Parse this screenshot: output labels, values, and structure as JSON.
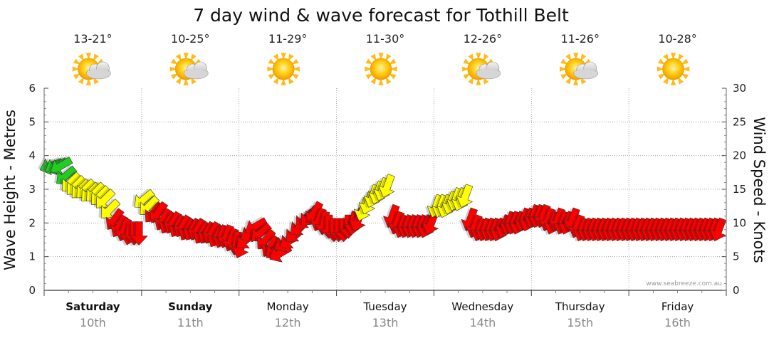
{
  "chart_data": {
    "type": "scatter",
    "title": "7 day wind & wave forecast for Tothill Belt",
    "ylabel_left": "Wave Height - Metres",
    "ylabel_right": "Wind Speed - Knots",
    "ylim_left": [
      0,
      6
    ],
    "ylim_right": [
      0,
      30
    ],
    "left_ticks": [
      "0",
      "1",
      "2",
      "3",
      "4",
      "5",
      "6"
    ],
    "right_ticks": [
      "0",
      "5",
      "10",
      "15",
      "20",
      "25",
      "30"
    ],
    "grid": true,
    "credit": "www.seabreeze.com.au",
    "days": [
      {
        "name": "Saturday",
        "date": "10th",
        "bold": true,
        "temp": "13-21°",
        "icon": "sun-cloud-icon"
      },
      {
        "name": "Sunday",
        "date": "11th",
        "bold": true,
        "temp": "10-25°",
        "icon": "sun-cloud-icon"
      },
      {
        "name": "Monday",
        "date": "12th",
        "bold": false,
        "temp": "11-29°",
        "icon": "sun-icon"
      },
      {
        "name": "Tuesday",
        "date": "13th",
        "bold": false,
        "temp": "11-30°",
        "icon": "sun-icon"
      },
      {
        "name": "Wednesday",
        "date": "14th",
        "bold": false,
        "temp": "12-26°",
        "icon": "sun-cloud-icon"
      },
      {
        "name": "Thursday",
        "date": "15th",
        "bold": false,
        "temp": "11-26°",
        "icon": "sun-cloud-icon"
      },
      {
        "name": "Friday",
        "date": "16th",
        "bold": false,
        "temp": "10-28°",
        "icon": "sun-icon"
      }
    ],
    "color_scale": {
      "green": "#22cc22",
      "yellow": "#ffff00",
      "red": "#ff0000"
    },
    "wind_series": {
      "name": "Wind Speed",
      "unit": "knots",
      "t": [
        0,
        0.15,
        0.3,
        0.45,
        0.6,
        0.75,
        0.9,
        1.05,
        1.2,
        1.35,
        1.5,
        1.65,
        1.8,
        1.95,
        2.1,
        2.25,
        2.4,
        2.55,
        2.7,
        2.85,
        3.0,
        3.15,
        3.3,
        3.45,
        3.6,
        3.75,
        3.9,
        4.05,
        4.2,
        4.35,
        4.5,
        4.65,
        4.8,
        4.95,
        5.1,
        5.25,
        5.4,
        5.55,
        5.7,
        5.85,
        6.0,
        6.15,
        6.3,
        6.45,
        6.6,
        6.75,
        6.9,
        7.05,
        7.2,
        7.35,
        7.5,
        7.65,
        7.8,
        7.95,
        8.1,
        8.25,
        8.4,
        8.55,
        8.7,
        8.85,
        9.0,
        9.15,
        9.3,
        9.45,
        9.6,
        9.75,
        9.9,
        10.05,
        10.2,
        10.35,
        10.5,
        10.65,
        10.8,
        10.95,
        11.1,
        11.25,
        11.4,
        11.55,
        11.7,
        11.85,
        12.0,
        12.15,
        12.3,
        12.45,
        12.6,
        12.75,
        12.9,
        13.05,
        13.2,
        13.35,
        13.5,
        13.65,
        13.8,
        13.95,
        14.1,
        14.25,
        14.4,
        14.55,
        14.7,
        14.85,
        15.0,
        15.15,
        15.3,
        15.45,
        15.6,
        15.75,
        15.9,
        16.05,
        16.2,
        16.35,
        16.5,
        16.65,
        16.8,
        16.95,
        17.1,
        17.25,
        17.4,
        17.55,
        17.7,
        17.85,
        18.0,
        18.15,
        18.3,
        18.45,
        18.6,
        18.75,
        18.9,
        19.05,
        19.2,
        19.35,
        19.5,
        19.65,
        19.8,
        19.95,
        20.1,
        20.25,
        20.4,
        20.55
      ],
      "speed": [
        18.5,
        18.5,
        18.5,
        17,
        16,
        15.5,
        15,
        15,
        14.5,
        14.5,
        14,
        13.5,
        12,
        10.5,
        9.5,
        9,
        8.5,
        8.5,
        8.5,
        13.5,
        12.5,
        11.5,
        11.5,
        10.5,
        10,
        10,
        9.5,
        9.5,
        9,
        9,
        9,
        8.5,
        8.5,
        8.5,
        8,
        8,
        8,
        7.5,
        7,
        6.5,
        7.5,
        8.5,
        9.5,
        8.5,
        7.5,
        6.5,
        6,
        5.5,
        7,
        7.5,
        8.5,
        9.5,
        10.5,
        11,
        11.5,
        10.5,
        10,
        9.5,
        9,
        9,
        9,
        9.5,
        10,
        10.5,
        12,
        13,
        14,
        14.5,
        15,
        15.5,
        11,
        10,
        9.5,
        9.5,
        9.5,
        9.5,
        9.5,
        9.5,
        10,
        12.5,
        12.5,
        12.5,
        13,
        13.5,
        13.5,
        14,
        10.5,
        9.5,
        9,
        9,
        9,
        9,
        9,
        9.5,
        10,
        10,
        10,
        10.5,
        10.5,
        11,
        11,
        11,
        10.5,
        10,
        10.5,
        10,
        10,
        10.5,
        9.5,
        9,
        9,
        9,
        9,
        9,
        9,
        9,
        9,
        9,
        9,
        9,
        9,
        9,
        9,
        9,
        9,
        9,
        9,
        9,
        9,
        9,
        9,
        9,
        9,
        9,
        9,
        9,
        9,
        9,
        9,
        9,
        9,
        9
      ],
      "direction_deg": [
        250,
        245,
        240,
        230,
        225,
        225,
        225,
        225,
        225,
        225,
        225,
        225,
        225,
        215,
        210,
        200,
        190,
        180,
        180,
        230,
        225,
        220,
        215,
        210,
        210,
        210,
        210,
        210,
        210,
        210,
        210,
        210,
        210,
        210,
        210,
        200,
        200,
        200,
        190,
        200,
        230,
        240,
        240,
        230,
        220,
        215,
        230,
        240,
        240,
        230,
        225,
        230,
        225,
        220,
        210,
        200,
        190,
        180,
        180,
        180,
        180,
        180,
        190,
        200,
        200,
        200,
        200,
        200,
        200,
        200,
        200,
        200,
        200,
        200,
        200,
        200,
        200,
        200,
        200,
        200,
        200,
        200,
        200,
        200,
        200,
        200,
        200,
        200,
        200,
        200,
        200,
        200,
        200,
        200,
        200,
        200,
        200,
        200,
        200,
        200,
        200,
        200,
        200,
        200,
        200,
        200,
        200,
        200,
        200,
        200,
        200,
        200,
        200,
        200,
        200,
        200,
        200,
        200,
        200,
        200,
        200,
        200,
        200,
        200,
        200,
        200,
        200,
        200,
        200,
        200,
        200,
        200,
        200,
        200,
        200,
        200,
        200,
        200,
        200,
        200
      ]
    }
  }
}
